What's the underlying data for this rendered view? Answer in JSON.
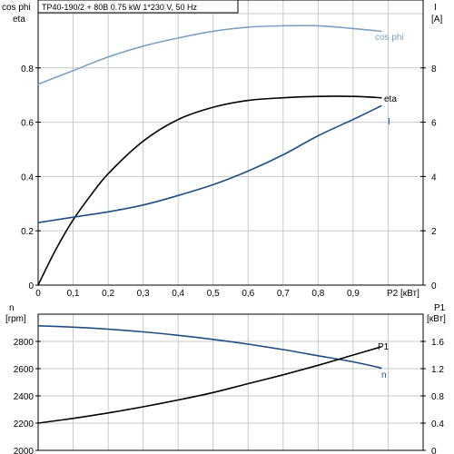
{
  "colors": {
    "cos_phi": "#7ea1c3",
    "eta": "#000000",
    "current": "#1f4e85",
    "speed": "#1f4e85",
    "p1": "#000000",
    "grid": "#c8c8c8"
  },
  "chart_data": [
    {
      "type": "line",
      "title": "TP40-190/2 + 80B   0.75 kW   1*230 V, 50 Hz",
      "xlabel": "P2 [кВт]",
      "xlim": [
        0,
        1.1
      ],
      "x_ticks": [
        "0",
        "0,1",
        "0,2",
        "0,3",
        "0,4",
        "0,5",
        "0,6",
        "0,7",
        "0,8",
        "0,9"
      ],
      "left_axis": {
        "label_line1": "cos phi",
        "label_line2": "eta",
        "lim": [
          0,
          1.05
        ],
        "ticks": [
          "0",
          "0.2",
          "0.4",
          "0.6",
          "0.8"
        ]
      },
      "right_axis": {
        "label_line1": "I",
        "label_line2": "[A]",
        "lim": [
          0,
          10.5
        ],
        "ticks": [
          "0",
          "2",
          "4",
          "6",
          "8"
        ]
      },
      "grid": true,
      "series": [
        {
          "name": "cos phi",
          "axis": "left",
          "x": [
            0,
            0.1,
            0.2,
            0.3,
            0.4,
            0.5,
            0.6,
            0.7,
            0.8,
            0.9,
            0.98
          ],
          "y": [
            0.74,
            0.79,
            0.84,
            0.88,
            0.91,
            0.935,
            0.95,
            0.955,
            0.955,
            0.945,
            0.935
          ]
        },
        {
          "name": "eta",
          "axis": "left",
          "x": [
            0,
            0.05,
            0.1,
            0.15,
            0.2,
            0.3,
            0.4,
            0.5,
            0.6,
            0.7,
            0.8,
            0.9,
            0.98
          ],
          "y": [
            0,
            0.13,
            0.24,
            0.33,
            0.41,
            0.53,
            0.61,
            0.655,
            0.68,
            0.69,
            0.695,
            0.695,
            0.69
          ]
        },
        {
          "name": "I",
          "axis": "right",
          "x": [
            0,
            0.1,
            0.2,
            0.3,
            0.4,
            0.5,
            0.6,
            0.7,
            0.8,
            0.9,
            0.98
          ],
          "y": [
            2.3,
            2.5,
            2.7,
            2.95,
            3.3,
            3.7,
            4.2,
            4.8,
            5.5,
            6.1,
            6.6
          ]
        }
      ]
    },
    {
      "type": "line",
      "xlim": [
        0,
        1.1
      ],
      "left_axis": {
        "label_line1": "n",
        "label_line2": "[rpm]",
        "lim": [
          2000,
          3000
        ],
        "ticks": [
          "2000",
          "2200",
          "2400",
          "2600",
          "2800"
        ]
      },
      "right_axis": {
        "label_line1": "P1",
        "label_line2": "[кВт]",
        "lim": [
          0,
          2.0
        ],
        "ticks": [
          "0",
          "0.4",
          "0.8",
          "1.2",
          "1.6"
        ]
      },
      "grid": true,
      "series": [
        {
          "name": "n",
          "axis": "left",
          "x": [
            0,
            0.1,
            0.2,
            0.3,
            0.4,
            0.5,
            0.6,
            0.7,
            0.8,
            0.9,
            0.98
          ],
          "y": [
            2915,
            2905,
            2890,
            2870,
            2845,
            2815,
            2780,
            2740,
            2695,
            2650,
            2605
          ]
        },
        {
          "name": "P1",
          "axis": "right",
          "x": [
            0,
            0.1,
            0.2,
            0.3,
            0.4,
            0.5,
            0.6,
            0.7,
            0.8,
            0.9,
            0.98
          ],
          "y": [
            0.4,
            0.47,
            0.55,
            0.64,
            0.74,
            0.85,
            0.98,
            1.11,
            1.25,
            1.4,
            1.52
          ]
        }
      ]
    }
  ]
}
